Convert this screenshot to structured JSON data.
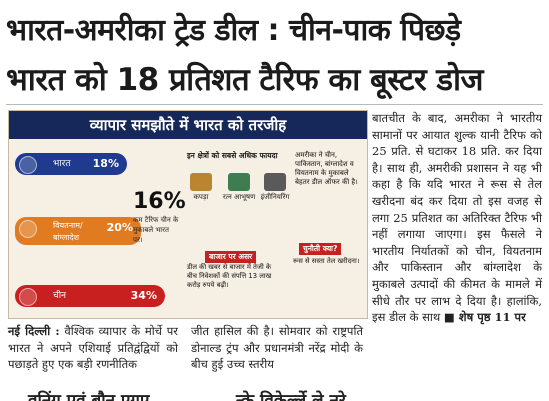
{
  "headline": {
    "line1": "भारत-अमरीका ट्रेड डील : चीन-पाक पिछड़े",
    "line2": "भारत को 18 प्रतिशत टैरिफ का बूस्टर डोज"
  },
  "infographic": {
    "title": "व्यापार समझौते में भारत को तरजीह",
    "bars": [
      {
        "label": "भारत",
        "value": "18%"
      },
      {
        "label": "वियतनाम/ बांग्लादेश",
        "value": "20%"
      },
      {
        "label": "चीन",
        "value": "34%"
      }
    ],
    "big_number": "16%",
    "big_number_caption": "कम टैरिफ चीन के मुकाबले भारत पर।",
    "advantage_heading": "इन क्षेत्रों को सबसे अधिक फायदा",
    "advantages": [
      "कपड़ा",
      "रत्न आभूषण",
      "इंजीनियरिंग"
    ],
    "usa_note": "अमरीका ने चीन, पाकिस्तान, बांग्लादेश व वियतनाम के मुकाबले बेहतर डील ऑफर की है।",
    "market_badge": "बाजार पर असर",
    "market_text": "डील की खबर से बाजार में तेजी के बीच निवेशकों की संपत्ति 13 लाख करोड़ रुपये बढ़ी।",
    "challenge_badge": "चुनौती क्या?",
    "challenge_text": "रूस से सस्ता तेल खरीदना।"
  },
  "right_column": "बातचीत के बाद, अमरीका ने भारतीय सामानों पर आयात शुल्क यानी टैरिफ को 25 प्रति. से घटाकर 18 प्रति. कर दिया है। साथ ही, अमरीकी प्रशासन ने यह भी कहा है कि यदि भारत ने रूस से तेल खरीदना बंद कर दिया तो इस वजह से लगा 25 प्रतिशत का अतिरिक्त टैरिफ भी नहीं लगाया जाएगा। इस फैसले ने भारतीय निर्यातकों को चीन, वियतनाम और पाकिस्तान और बांग्लादेश के मुकाबले उत्पादों की कीमत के मामले में सीधे तौर पर लाभ दे दिया है। हालांकि, इस डील के साथ",
  "continued": "■ शेष पृष्ठ 11 पर",
  "col_a_dateline": "नई दिल्ली :",
  "col_a": "वैश्विक व्यापार के मोर्चे पर भारत ने अपने एशियाई प्रतिद्वंद्वियों को पछाड़ते हुए एक बड़ी रणनीतिक",
  "col_b": "जीत हासिल की है। सोमवार को राष्ट्रपति डोनाल्ड ट्रंप और प्रधानमंत्री नरेंद्र मोदी के बीच हुई उच्च स्तरीय",
  "bottom_strip": [
    "वनिंग एवं बौन एगए",
    "न्के विकेर्ल्ले ले नरे"
  ],
  "colors": {
    "navy": "#16285a",
    "red": "#c81f1f",
    "orange": "#e07b22",
    "cream": "#f6efe4"
  }
}
